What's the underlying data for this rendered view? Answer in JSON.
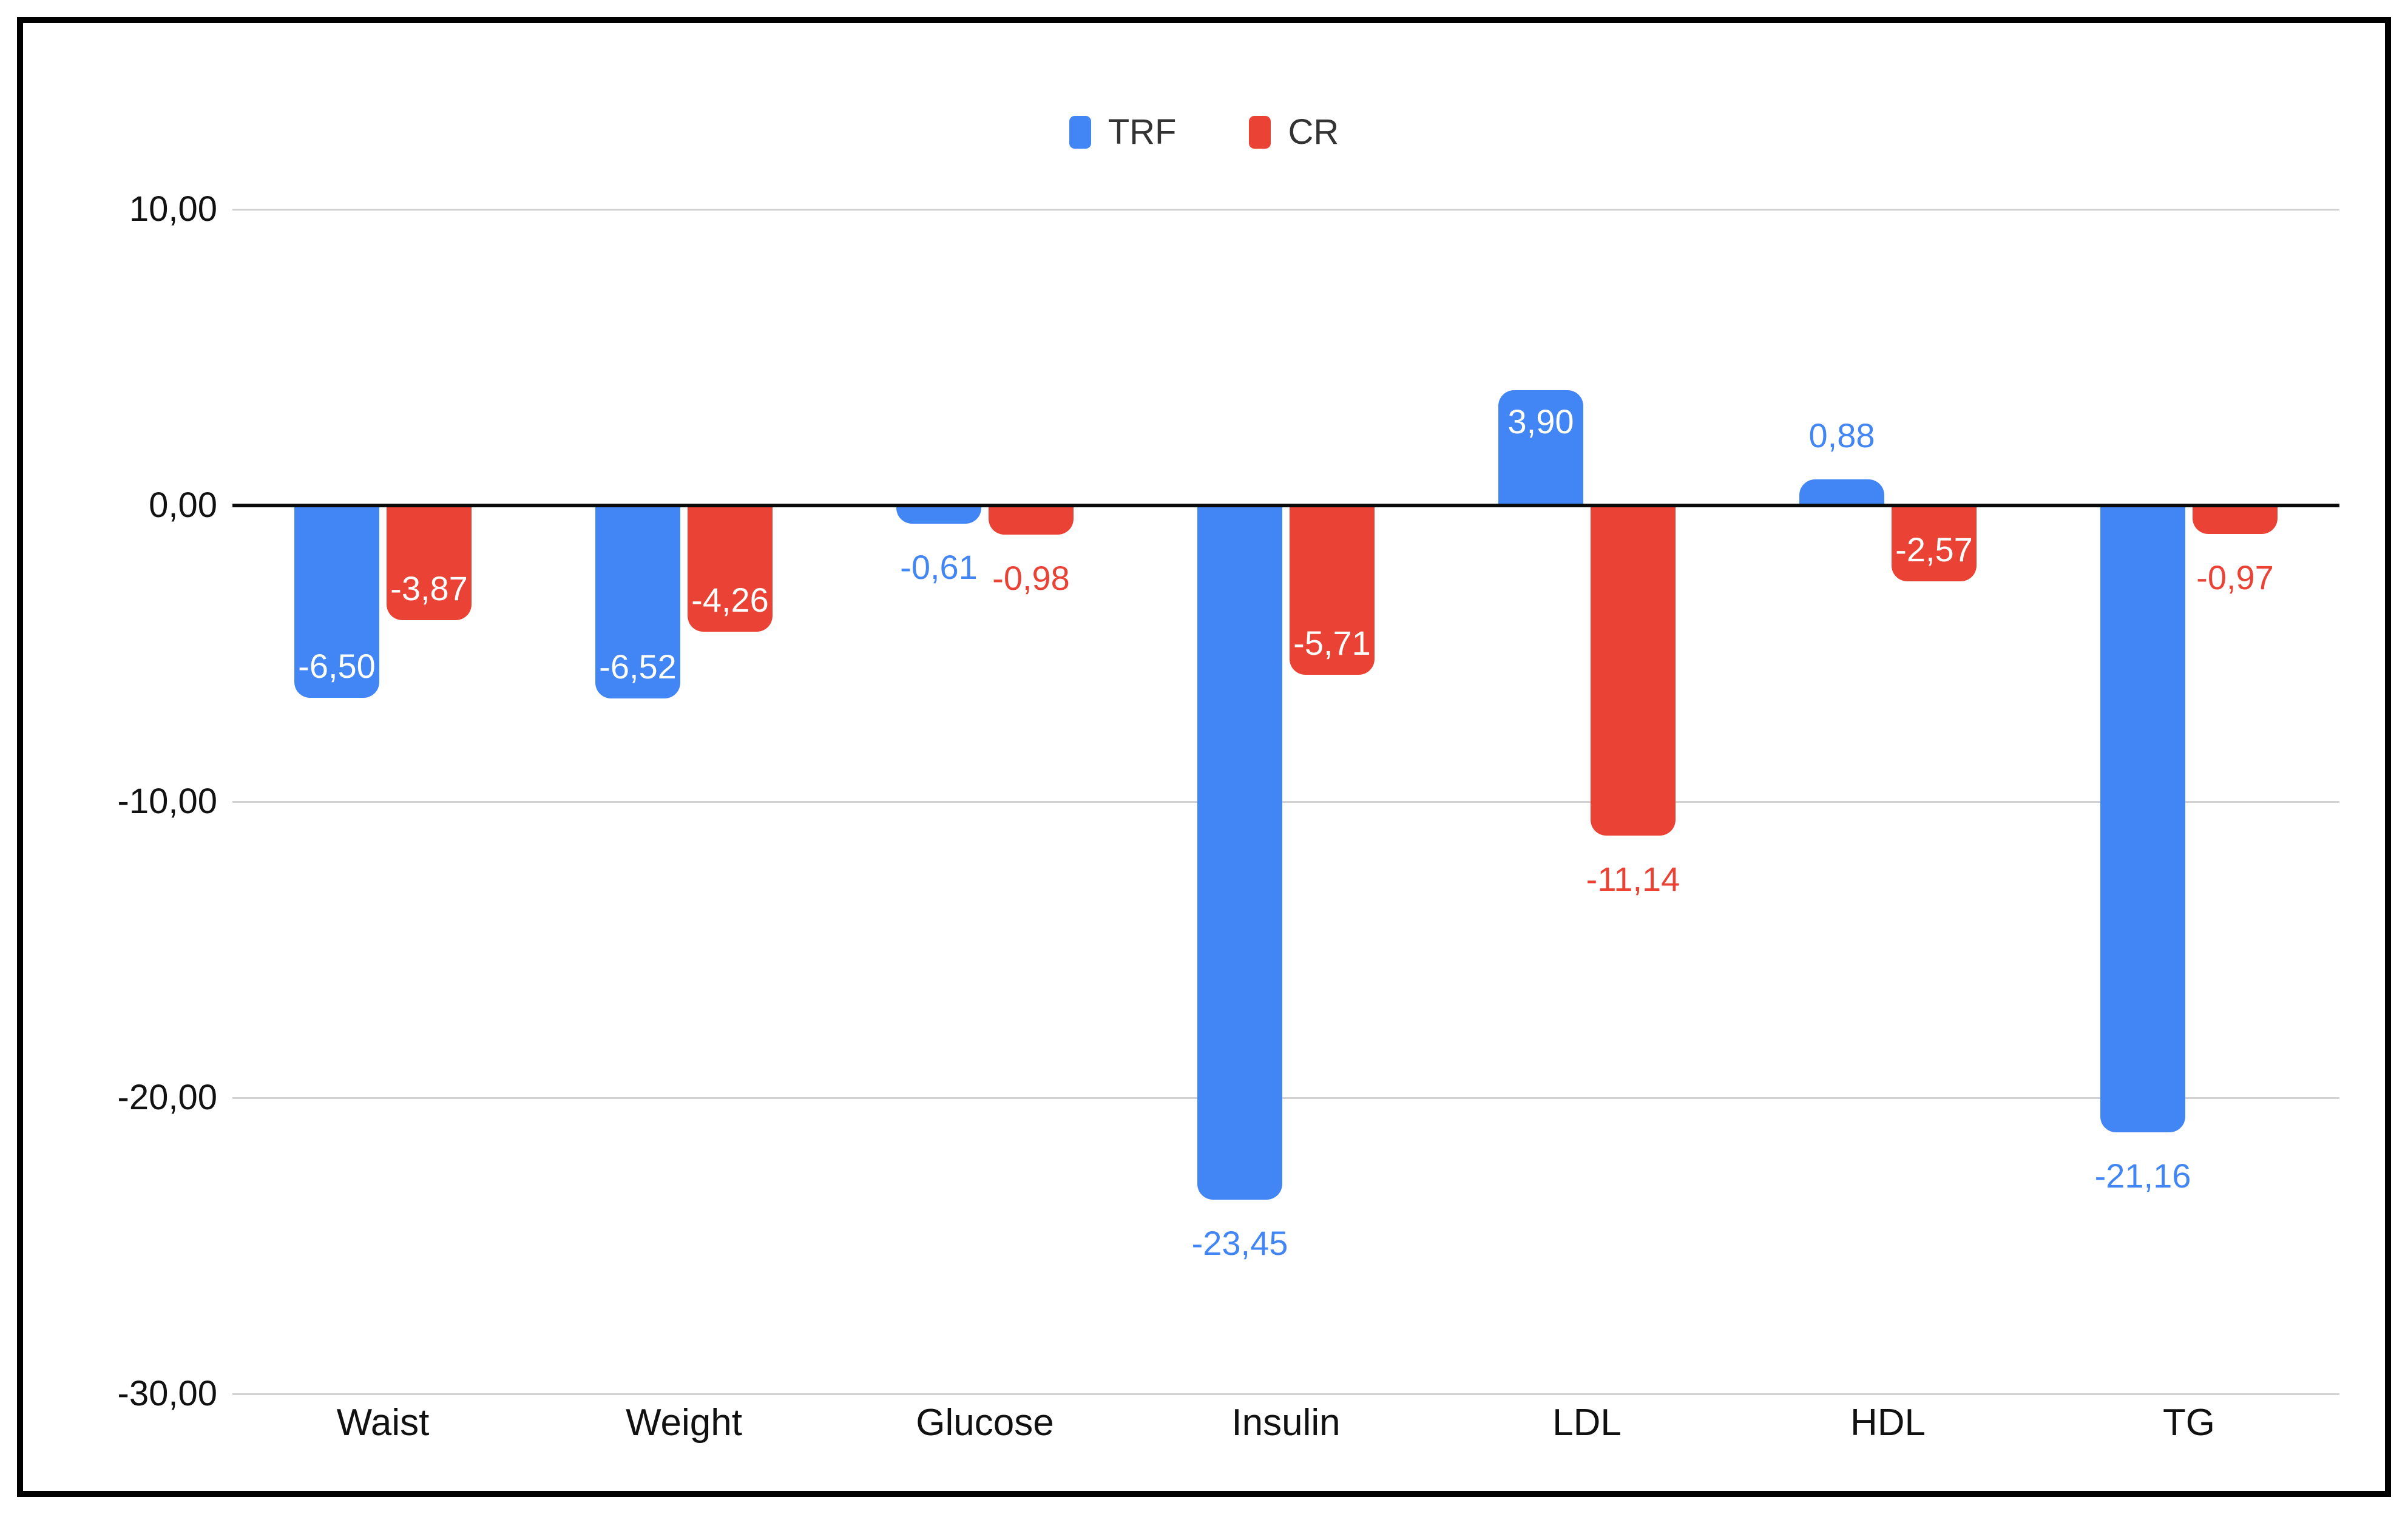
{
  "chart_data": {
    "type": "bar",
    "title": "",
    "categories": [
      "Waist",
      "Weight",
      "Glucose",
      "Insulin",
      "LDL",
      "HDL",
      "TG"
    ],
    "series": [
      {
        "name": "TRF",
        "color": "#4285F4",
        "values": [
          -6.5,
          -6.52,
          -0.61,
          -23.45,
          3.9,
          0.88,
          -21.16
        ],
        "labels": [
          "-6,50",
          "-6,52",
          "-0,61",
          "-23,45",
          "3,90",
          "0,88",
          "-21,16"
        ],
        "label_inside": [
          true,
          true,
          false,
          false,
          true,
          false,
          false
        ]
      },
      {
        "name": "CR",
        "color": "#EA4335",
        "values": [
          -3.87,
          -4.26,
          -0.98,
          -5.71,
          -11.14,
          -2.57,
          -0.97
        ],
        "labels": [
          "-3,87",
          "-4,26",
          "-0,98",
          "-5,71",
          "-11,14",
          "-2,57",
          "-0,97"
        ],
        "label_inside": [
          true,
          true,
          false,
          true,
          false,
          true,
          false
        ]
      }
    ],
    "y_axis": {
      "ticks": [
        "10,00",
        "0,00",
        "-10,00",
        "-20,00",
        "-30,00"
      ],
      "tick_values": [
        10,
        0,
        -10,
        -20,
        -30
      ],
      "min": -30,
      "max": 10
    },
    "legend": {
      "position": "top",
      "entries": [
        "TRF",
        "CR"
      ]
    },
    "grid": true,
    "colors": {
      "trf": "#4285F4",
      "cr": "#EA4335",
      "gridline": "#d2d2d2",
      "zero_line": "#0b0b0b",
      "axis_text": "#111111",
      "inside_label": "#ffffff",
      "frame_border": "#000000",
      "background": "#ffffff"
    }
  }
}
